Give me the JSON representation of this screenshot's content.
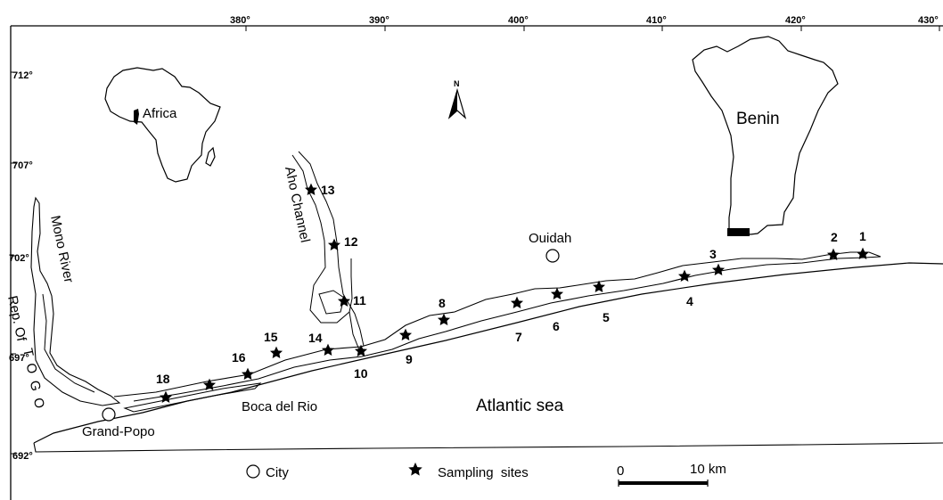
{
  "axis": {
    "x_ticks": [
      "380°",
      "390°",
      "400°",
      "410°",
      "420°",
      "430°"
    ],
    "y_ticks": [
      "712°",
      "707°",
      "702°",
      "697°",
      "692°"
    ]
  },
  "labels": {
    "africa": "Africa",
    "benin": "Benin",
    "north": "N",
    "aho": "Aho Channel",
    "mono": "Mono River",
    "rep_of": "Rep. Of",
    "togo": "T O G O",
    "ouidah": "Ouidah",
    "grand_popo": "Grand-Popo",
    "boca": "Boca del Rio",
    "sea": "Atlantic sea"
  },
  "sites": [
    "1",
    "2",
    "3",
    "4",
    "5",
    "6",
    "7",
    "8",
    "9",
    "10",
    "11",
    "12",
    "13",
    "14",
    "15",
    "16",
    "18"
  ],
  "legend": {
    "city": "City",
    "sampling": "Sampling  sites",
    "scale_start": "0",
    "scale_end": "10 km"
  }
}
